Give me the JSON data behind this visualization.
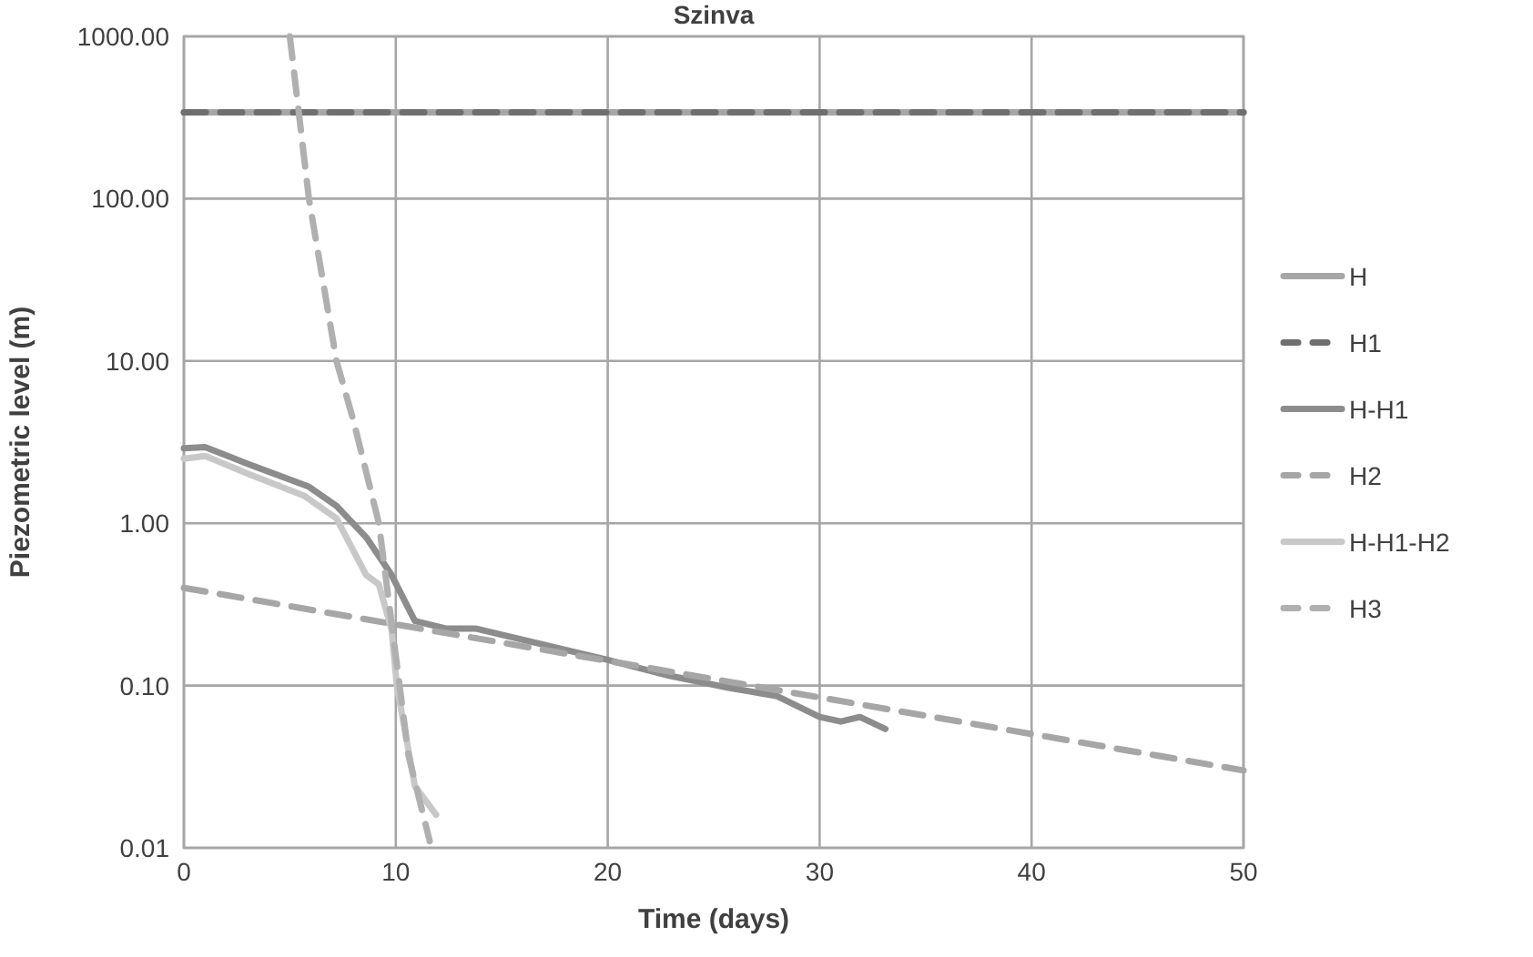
{
  "chart_data": {
    "type": "line",
    "title": "Szinva",
    "xlabel": "Time (days)",
    "ylabel": "Piezometric level (m)",
    "log": "y",
    "xlim": [
      0,
      50
    ],
    "xticks": [
      0,
      10,
      20,
      30,
      40,
      50
    ],
    "ylim": [
      0.01,
      1000
    ],
    "yticks": [
      {
        "value": 0.01,
        "label": "0.01"
      },
      {
        "value": 0.1,
        "label": "0.10"
      },
      {
        "value": 1,
        "label": "1.00"
      },
      {
        "value": 10,
        "label": "10.00"
      },
      {
        "value": 100,
        "label": "100.00"
      },
      {
        "value": 1000,
        "label": "1000.00"
      }
    ],
    "grid": true,
    "legend": "right",
    "series": [
      {
        "name": "H",
        "color": "#a6a6a6",
        "line_style": "solid",
        "x": [
          0,
          50
        ],
        "values": [
          340,
          340
        ]
      },
      {
        "name": "H1",
        "color": "#6f6f6f",
        "line_style": "dashed",
        "x": [
          0,
          50
        ],
        "values": [
          340,
          340
        ]
      },
      {
        "name": "H-H1",
        "color": "#8c8c8c",
        "line_style": "solid",
        "x": [
          0,
          1,
          3.1,
          5.9,
          7.2,
          8.6,
          9.8,
          10.9,
          12.4,
          13.8,
          17.1,
          20,
          22.9,
          25.7,
          28,
          30,
          31,
          31.9,
          33.1
        ],
        "values": [
          2.9,
          2.95,
          2.3,
          1.68,
          1.28,
          0.82,
          0.48,
          0.25,
          0.224,
          0.224,
          0.177,
          0.144,
          0.115,
          0.097,
          0.086,
          0.064,
          0.06,
          0.064,
          0.054
        ]
      },
      {
        "name": "H2",
        "color": "#a6a6a6",
        "line_style": "dashed",
        "x": [
          0,
          10,
          20,
          30,
          40,
          50
        ],
        "values": [
          0.4,
          0.238,
          0.142,
          0.0845,
          0.0503,
          0.03
        ]
      },
      {
        "name": "H-H1-H2",
        "color": "#c8c8c8",
        "line_style": "solid",
        "x": [
          0,
          1,
          3.1,
          5.7,
          7.2,
          8.6,
          9.2,
          9.8,
          10.05,
          10.9,
          11.9
        ],
        "values": [
          2.5,
          2.6,
          2.0,
          1.47,
          1.07,
          0.48,
          0.42,
          0.22,
          0.1,
          0.024,
          0.016
        ]
      },
      {
        "name": "H3",
        "color": "#b0b0b0",
        "line_style": "dashed",
        "x": [
          5,
          5.9,
          7.2,
          8,
          9.2,
          10.6,
          11.6
        ],
        "values": [
          1000,
          100,
          10,
          4.3,
          1.0,
          0.037,
          0.011
        ]
      }
    ]
  }
}
